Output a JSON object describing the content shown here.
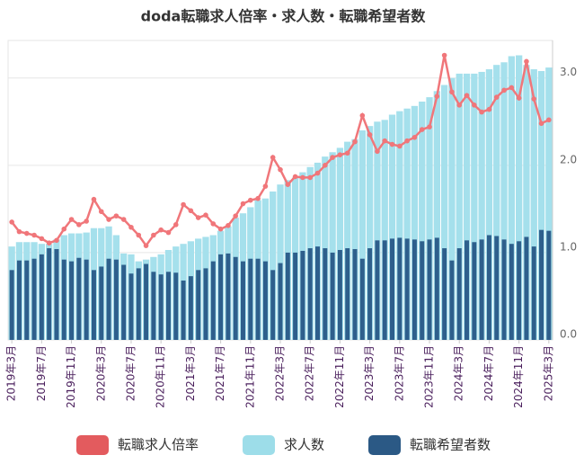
{
  "chart_data": {
    "type": "bar",
    "title": "doda転職求人倍率・求人数・転職希望者数",
    "categories": [
      "2019年3月",
      null,
      null,
      null,
      "2019年7月",
      null,
      null,
      null,
      "2019年11月",
      null,
      null,
      null,
      "2020年3月",
      null,
      null,
      null,
      "2020年7月",
      null,
      null,
      null,
      "2020年11月",
      null,
      null,
      null,
      "2021年3月",
      null,
      null,
      null,
      "2021年7月",
      null,
      null,
      null,
      "2021年11月",
      null,
      null,
      null,
      "2022年3月",
      null,
      null,
      null,
      "2022年7月",
      null,
      null,
      null,
      "2022年11月",
      null,
      null,
      null,
      "2023年3月",
      null,
      null,
      null,
      "2023年7月",
      null,
      null,
      null,
      "2023年11月",
      null,
      null,
      null,
      "2024年3月",
      null,
      null,
      null,
      "2024年7月",
      null,
      null,
      null,
      "2024年11月",
      null,
      null,
      null,
      "2025年3月"
    ],
    "series": [
      {
        "name": "転職求人倍率",
        "type": "line",
        "color": "#f0767a",
        "legend_color": "#e35b5e",
        "values": [
          1.35,
          1.24,
          1.22,
          1.2,
          1.16,
          1.11,
          1.14,
          1.27,
          1.38,
          1.32,
          1.36,
          1.61,
          1.47,
          1.38,
          1.42,
          1.38,
          1.29,
          1.2,
          1.08,
          1.2,
          1.26,
          1.23,
          1.32,
          1.55,
          1.48,
          1.4,
          1.43,
          1.33,
          1.27,
          1.31,
          1.42,
          1.56,
          1.6,
          1.62,
          1.76,
          2.09,
          1.95,
          1.78,
          1.87,
          1.86,
          1.86,
          1.91,
          2.0,
          2.09,
          2.12,
          2.14,
          2.27,
          2.57,
          2.35,
          2.16,
          2.28,
          2.24,
          2.22,
          2.28,
          2.32,
          2.41,
          2.44,
          2.79,
          3.26,
          2.84,
          2.69,
          2.8,
          2.69,
          2.61,
          2.64,
          2.78,
          2.86,
          2.89,
          2.77,
          3.19,
          2.76,
          2.48,
          2.52
        ]
      },
      {
        "name": "求人数",
        "type": "bar",
        "color": "#a5e0ec",
        "legend_color": "#9ddde9",
        "values": [
          1.07,
          1.12,
          1.12,
          1.12,
          1.1,
          1.1,
          1.15,
          1.2,
          1.22,
          1.22,
          1.23,
          1.28,
          1.28,
          1.3,
          1.2,
          0.99,
          0.98,
          0.9,
          0.92,
          0.95,
          0.98,
          1.03,
          1.07,
          1.1,
          1.13,
          1.16,
          1.18,
          1.2,
          1.25,
          1.3,
          1.4,
          1.45,
          1.52,
          1.6,
          1.62,
          1.7,
          1.78,
          1.83,
          1.86,
          1.92,
          1.98,
          2.03,
          2.1,
          2.15,
          2.2,
          2.27,
          2.3,
          2.4,
          2.45,
          2.5,
          2.52,
          2.58,
          2.62,
          2.65,
          2.68,
          2.73,
          2.78,
          2.85,
          2.92,
          3.0,
          3.05,
          3.05,
          3.05,
          3.07,
          3.1,
          3.15,
          3.18,
          3.25,
          3.26,
          3.15,
          3.1,
          3.08,
          3.12
        ]
      },
      {
        "name": "転職希望者数",
        "type": "bar",
        "color": "#2e5f8c",
        "legend_color": "#2b5985",
        "values": [
          0.8,
          0.91,
          0.91,
          0.93,
          0.98,
          1.05,
          1.04,
          0.92,
          0.9,
          0.94,
          0.92,
          0.8,
          0.84,
          0.93,
          0.92,
          0.86,
          0.76,
          0.82,
          0.87,
          0.78,
          0.75,
          0.78,
          0.77,
          0.68,
          0.73,
          0.8,
          0.82,
          0.9,
          0.98,
          0.99,
          0.95,
          0.9,
          0.93,
          0.93,
          0.9,
          0.8,
          0.88,
          1.0,
          1.0,
          1.02,
          1.05,
          1.07,
          1.05,
          1.0,
          1.03,
          1.05,
          1.04,
          0.93,
          1.05,
          1.14,
          1.14,
          1.16,
          1.17,
          1.16,
          1.15,
          1.13,
          1.15,
          1.17,
          1.05,
          0.91,
          1.05,
          1.14,
          1.12,
          1.15,
          1.2,
          1.19,
          1.15,
          1.1,
          1.13,
          1.18,
          1.07,
          1.26,
          1.25
        ]
      }
    ],
    "ylim": [
      0,
      3.43
    ],
    "yticks": [
      {
        "value": 0,
        "label": "0.0"
      },
      {
        "value": 1,
        "label": "1.0"
      },
      {
        "value": 2,
        "label": "2.0"
      },
      {
        "value": 3,
        "label": "3.0"
      }
    ],
    "grid": true,
    "legend": "bottom"
  }
}
